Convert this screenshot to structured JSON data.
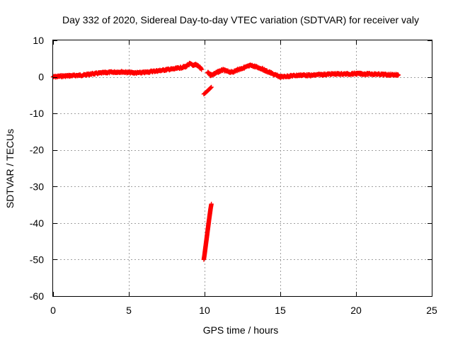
{
  "chart_data": {
    "type": "scatter",
    "title": "Day 332 of 2020, Sidereal Day-to-day VTEC variation (SDTVAR) for receiver valy",
    "xlabel": "GPS time / hours",
    "ylabel": "SDTVAR / TECUs",
    "xlim": [
      0,
      25
    ],
    "ylim": [
      -60,
      10
    ],
    "xticks": [
      "0",
      "5",
      "10",
      "15",
      "20",
      "25"
    ],
    "yticks": [
      "10",
      "0",
      "-10",
      "-20",
      "-30",
      "-40",
      "-50",
      "-60"
    ],
    "grid": true,
    "marker": "+",
    "color": "#ff0000",
    "series": [
      {
        "name": "main band",
        "x": [
          0.0,
          0.5,
          1.0,
          1.5,
          2.0,
          2.5,
          3.0,
          3.5,
          4.0,
          4.5,
          5.0,
          5.5,
          6.0,
          6.5,
          7.0,
          7.5,
          8.0,
          8.5,
          8.8,
          9.0,
          9.2,
          9.4,
          9.6,
          9.8
        ],
        "y": [
          0.0,
          0.2,
          0.3,
          0.4,
          0.5,
          0.8,
          1.0,
          1.2,
          1.3,
          1.4,
          1.2,
          1.1,
          1.2,
          1.5,
          1.7,
          2.0,
          2.2,
          2.6,
          2.9,
          3.6,
          3.2,
          3.4,
          2.9,
          2.0
        ]
      },
      {
        "name": "post-gap band",
        "x": [
          10.2,
          10.4,
          10.6,
          10.8,
          11.0,
          11.2,
          11.5,
          11.8,
          12.0,
          12.2,
          12.5,
          12.8,
          13.0,
          13.2,
          13.5,
          13.8,
          14.0,
          14.3,
          14.6,
          15.0,
          15.5,
          16.0,
          16.5,
          17.0,
          17.5,
          18.0,
          18.5,
          19.0,
          19.5,
          20.0,
          20.5,
          21.0,
          21.5,
          22.0,
          22.5,
          22.8
        ],
        "y": [
          1.2,
          0.5,
          0.8,
          1.2,
          1.6,
          1.9,
          1.5,
          1.3,
          1.6,
          2.0,
          2.4,
          2.8,
          3.1,
          3.0,
          2.6,
          2.2,
          1.7,
          1.2,
          0.6,
          0.0,
          0.2,
          0.4,
          0.5,
          0.4,
          0.6,
          0.7,
          0.8,
          0.8,
          0.8,
          0.9,
          0.8,
          0.8,
          0.7,
          0.6,
          0.6,
          0.5
        ]
      },
      {
        "name": "short drop segment",
        "x": [
          9.95,
          10.05,
          10.15,
          10.25,
          10.35,
          10.45
        ],
        "y": [
          -4.7,
          -4.4,
          -4.0,
          -3.6,
          -3.2,
          -2.8
        ]
      },
      {
        "name": "steep drop segment",
        "x": [
          9.95,
          10.0,
          10.05,
          10.1,
          10.15,
          10.2,
          10.25,
          10.3,
          10.35,
          10.4,
          10.45
        ],
        "y": [
          -50.0,
          -48.6,
          -47.0,
          -45.4,
          -43.8,
          -42.2,
          -40.6,
          -39.0,
          -37.5,
          -36.0,
          -34.8
        ]
      }
    ]
  }
}
